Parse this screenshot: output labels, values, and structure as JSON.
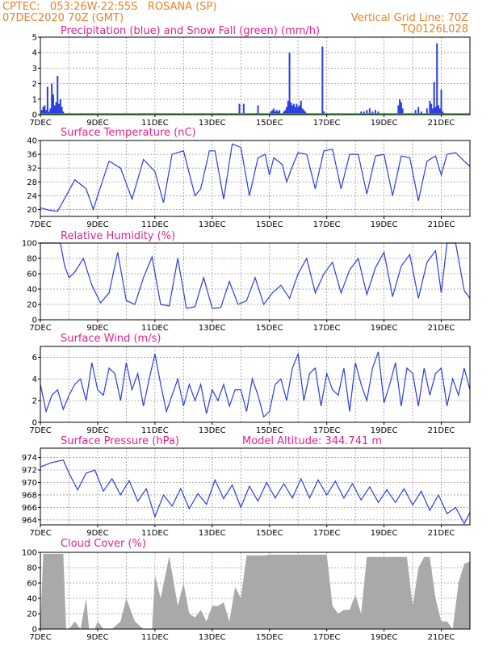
{
  "header": {
    "line1": "CPTEC:   053:26W-22:55S   ROSANA (SP)",
    "line2": "07DEC2020 70Z (GMT)",
    "grid_note": "Vertical Grid Line: 70Z",
    "code": "TQ0126L028"
  },
  "colors": {
    "header": "#e8822a",
    "title": "#e0228f",
    "series": "#2a3fe0",
    "snow": "#22aa22",
    "cloud": "#a9a9a9"
  },
  "x_axis": {
    "ticks": [
      {
        "day": 0,
        "label": "7DEC"
      },
      {
        "day": 2,
        "label": "9DEC"
      },
      {
        "day": 4,
        "label": "11DEC"
      },
      {
        "day": 6,
        "label": "13DEC"
      },
      {
        "day": 8,
        "label": "15DEC"
      },
      {
        "day": 10,
        "label": "17DEC"
      },
      {
        "day": 12,
        "label": "19DEC"
      },
      {
        "day": 14,
        "label": "21DEC"
      }
    ]
  },
  "chart_data": [
    {
      "type": "bar",
      "title": "Precipitation (blue) and Snow Fall (green) (mm/h)",
      "ylim": [
        0,
        5
      ],
      "yticks": [
        0,
        1,
        2,
        3,
        4,
        5
      ],
      "series": [
        {
          "name": "Precipitation",
          "color": "#2a3fe0",
          "x": [
            0.05,
            0.1,
            0.15,
            0.2,
            0.25,
            0.3,
            0.35,
            0.4,
            0.45,
            0.5,
            0.55,
            0.6,
            0.65,
            0.7,
            0.75,
            0.8,
            6.95,
            7.1,
            7.55,
            7.6,
            8.05,
            8.1,
            8.15,
            8.2,
            8.25,
            8.3,
            8.35,
            8.5,
            8.55,
            8.6,
            8.65,
            8.7,
            8.75,
            8.8,
            8.85,
            8.9,
            8.95,
            9.0,
            9.05,
            9.1,
            9.15,
            9.2,
            9.25,
            9.3,
            9.85,
            9.9,
            11.2,
            11.3,
            11.4,
            11.5,
            11.6,
            11.7,
            11.8,
            12.5,
            12.55,
            12.6,
            12.65,
            13.1,
            13.2,
            13.3,
            13.5,
            13.6,
            13.65,
            13.7,
            13.75,
            13.8,
            13.85,
            13.9,
            13.95,
            14.0,
            14.05,
            14.1
          ],
          "values": [
            0.3,
            0.5,
            0.6,
            0.3,
            1.8,
            0.2,
            0.4,
            2.0,
            1.3,
            0.6,
            0.8,
            2.5,
            0.7,
            1.0,
            0.5,
            0.2,
            0.7,
            0.7,
            0.1,
            0.6,
            0.2,
            0.3,
            0.4,
            0.2,
            0.3,
            0.2,
            0.3,
            0.2,
            0.3,
            0.5,
            0.9,
            4.0,
            0.8,
            0.6,
            0.7,
            0.5,
            0.7,
            0.5,
            0.6,
            0.9,
            0.4,
            0.3,
            0.2,
            0.1,
            4.4,
            0.2,
            0.2,
            0.2,
            0.3,
            0.4,
            0.2,
            0.3,
            0.2,
            0.6,
            1.0,
            0.8,
            0.4,
            0.3,
            0.5,
            0.2,
            0.4,
            0.9,
            0.7,
            0.4,
            2.1,
            0.5,
            4.6,
            0.6,
            0.4,
            1.6,
            0.2,
            0.1
          ]
        },
        {
          "name": "Snow Fall",
          "color": "#22aa22",
          "x": [
            0,
            15
          ],
          "values": [
            0,
            0
          ]
        }
      ]
    },
    {
      "type": "line",
      "title": "Surface Temperature (nC)",
      "ylim": [
        18,
        40
      ],
      "yticks": [
        20,
        24,
        28,
        32,
        36,
        40
      ],
      "x": [
        0,
        0.3,
        0.6,
        0.9,
        1.2,
        1.6,
        1.85,
        2.0,
        2.4,
        2.8,
        3.2,
        3.6,
        4.0,
        4.3,
        4.6,
        5.0,
        5.4,
        5.6,
        5.9,
        6.1,
        6.4,
        6.7,
        7.0,
        7.3,
        7.6,
        7.85,
        8.0,
        8.15,
        8.3,
        8.45,
        8.6,
        8.8,
        9.0,
        9.3,
        9.6,
        9.9,
        10.2,
        10.5,
        10.8,
        11.1,
        11.4,
        11.7,
        12.0,
        12.3,
        12.6,
        12.9,
        13.2,
        13.5,
        13.8,
        14.0,
        14.2,
        14.5,
        14.8,
        15.0
      ],
      "values": [
        20.5,
        19.8,
        19.5,
        24,
        28.6,
        26,
        20,
        24,
        34,
        32,
        23,
        34.5,
        31,
        22,
        36,
        37,
        24,
        26,
        37,
        37,
        23,
        39,
        38,
        24,
        35,
        36,
        30,
        35,
        34,
        33,
        28,
        32.5,
        36.5,
        36,
        26,
        37,
        37.5,
        26,
        36,
        36,
        24.5,
        35.5,
        36,
        24,
        35.5,
        35,
        22.5,
        34,
        35.5,
        30,
        36,
        36.5,
        34,
        32.5
      ]
    },
    {
      "type": "line",
      "title": "Relative Humidity (%)",
      "ylim": [
        0,
        100
      ],
      "yticks": [
        0,
        20,
        40,
        60,
        80,
        100
      ],
      "x": [
        0,
        0.4,
        0.7,
        0.85,
        1.0,
        1.2,
        1.5,
        1.8,
        2.1,
        2.4,
        2.7,
        3.0,
        3.3,
        3.6,
        3.9,
        4.2,
        4.5,
        4.8,
        5.1,
        5.4,
        5.7,
        6.0,
        6.3,
        6.6,
        6.9,
        7.2,
        7.5,
        7.8,
        8.1,
        8.4,
        8.7,
        9.0,
        9.3,
        9.6,
        9.9,
        10.2,
        10.5,
        10.8,
        11.1,
        11.4,
        11.7,
        12.0,
        12.3,
        12.6,
        12.9,
        13.2,
        13.5,
        13.8,
        14.0,
        14.2,
        14.5,
        14.8,
        15.0
      ],
      "values": [
        100,
        100,
        100,
        70,
        55,
        62,
        80,
        45,
        22,
        35,
        88,
        25,
        20,
        55,
        82,
        20,
        18,
        80,
        15,
        17,
        55,
        15,
        16,
        50,
        20,
        25,
        55,
        20,
        35,
        45,
        28,
        60,
        80,
        35,
        60,
        75,
        35,
        65,
        80,
        33,
        68,
        88,
        30,
        70,
        85,
        28,
        75,
        90,
        35,
        100,
        100,
        38,
        28
      ]
    },
    {
      "type": "line",
      "title": "Surface Wind (m/s)",
      "ylim": [
        0,
        7
      ],
      "yticks": [
        0,
        2,
        4,
        6
      ],
      "x": [
        0,
        0.2,
        0.4,
        0.6,
        0.8,
        1.0,
        1.2,
        1.4,
        1.6,
        1.8,
        2.0,
        2.2,
        2.4,
        2.6,
        2.8,
        3.0,
        3.2,
        3.4,
        3.6,
        3.8,
        4.0,
        4.2,
        4.4,
        4.6,
        4.8,
        5.0,
        5.2,
        5.4,
        5.6,
        5.8,
        6.0,
        6.2,
        6.4,
        6.6,
        6.8,
        7.0,
        7.2,
        7.4,
        7.6,
        7.8,
        8.0,
        8.2,
        8.4,
        8.6,
        8.8,
        9.0,
        9.2,
        9.4,
        9.6,
        9.8,
        10.0,
        10.2,
        10.4,
        10.6,
        10.8,
        11.0,
        11.2,
        11.4,
        11.6,
        11.8,
        12.0,
        12.2,
        12.4,
        12.6,
        12.8,
        13.0,
        13.2,
        13.4,
        13.6,
        13.8,
        14.0,
        14.2,
        14.4,
        14.6,
        14.8,
        15.0
      ],
      "values": [
        3.5,
        1.0,
        2.5,
        3.0,
        1.2,
        2.5,
        3.5,
        4.0,
        2.0,
        5.5,
        3.0,
        2.5,
        5.0,
        4.5,
        2.0,
        5.5,
        3.0,
        4.5,
        1.5,
        4.0,
        6.3,
        3.5,
        1.0,
        2.5,
        4.0,
        1.5,
        3.5,
        2.0,
        3.5,
        0.8,
        3.0,
        2.0,
        3.5,
        1.5,
        3.0,
        3.0,
        1.0,
        4.0,
        2.5,
        0.5,
        1.0,
        3.5,
        4.0,
        2.0,
        5.0,
        6.3,
        2.0,
        4.5,
        5.0,
        1.5,
        4.5,
        3.0,
        2.5,
        5.0,
        1.0,
        5.5,
        3.5,
        2.0,
        5.0,
        6.5,
        1.8,
        3.5,
        5.5,
        1.5,
        5.0,
        4.5,
        1.5,
        5.0,
        2.5,
        4.5,
        5.0,
        1.5,
        4.0,
        2.5,
        5.0,
        3.0
      ]
    },
    {
      "type": "line",
      "title": "Surface Pressure (hPa)",
      "annotation": "Model Altitude: 344.741 m",
      "ylim": [
        963.2,
        975.5
      ],
      "yticks": [
        964,
        966,
        968,
        970,
        972,
        974
      ],
      "x": [
        0,
        0.4,
        0.8,
        1.0,
        1.3,
        1.6,
        1.9,
        2.2,
        2.5,
        2.8,
        3.1,
        3.4,
        3.7,
        4.0,
        4.3,
        4.6,
        4.9,
        5.2,
        5.5,
        5.8,
        6.1,
        6.4,
        6.7,
        7.0,
        7.3,
        7.6,
        7.9,
        8.2,
        8.5,
        8.8,
        9.1,
        9.4,
        9.7,
        10.0,
        10.3,
        10.6,
        10.9,
        11.2,
        11.5,
        11.8,
        12.1,
        12.4,
        12.7,
        13.0,
        13.3,
        13.6,
        13.9,
        14.2,
        14.5,
        14.8,
        15.0
      ],
      "values": [
        972.5,
        973.2,
        973.6,
        971.5,
        968.8,
        971.5,
        972.0,
        968.6,
        970.6,
        968.0,
        970.3,
        967.0,
        969.0,
        964.5,
        968.0,
        966.2,
        969.0,
        965.8,
        968.2,
        966.5,
        970.4,
        967.4,
        969.6,
        966.0,
        969.4,
        967.0,
        970.0,
        967.5,
        969.8,
        967.5,
        970.6,
        967.5,
        970.4,
        968.0,
        970.2,
        967.5,
        969.8,
        967.2,
        969.3,
        966.8,
        968.8,
        966.8,
        969.0,
        966.4,
        968.6,
        965.5,
        968.0,
        965.0,
        966.0,
        963.4,
        965.2
      ]
    },
    {
      "type": "area",
      "title": "Cloud Cover (%)",
      "ylim": [
        0,
        100
      ],
      "yticks": [
        0,
        20,
        40,
        60,
        80,
        100
      ],
      "x": [
        0,
        0.1,
        0.8,
        0.9,
        1.0,
        1.2,
        1.4,
        1.6,
        1.7,
        1.8,
        1.9,
        2.0,
        2.2,
        2.5,
        2.8,
        3.0,
        3.3,
        3.6,
        3.9,
        4.0,
        4.2,
        4.5,
        4.8,
        5.0,
        5.2,
        5.4,
        5.6,
        5.8,
        6.0,
        6.2,
        6.4,
        6.6,
        6.8,
        7.0,
        7.2,
        7.4,
        7.6,
        7.8,
        8.0,
        8.5,
        9.0,
        9.5,
        9.8,
        10.0,
        10.2,
        10.4,
        10.6,
        10.8,
        11.0,
        11.2,
        11.4,
        11.8,
        12.0,
        12.2,
        12.4,
        12.6,
        12.8,
        13.0,
        13.2,
        13.4,
        13.6,
        13.8,
        14.0,
        14.2,
        14.4,
        14.6,
        14.8,
        15.0
      ],
      "values": [
        0,
        98,
        98,
        0,
        0,
        10,
        0,
        40,
        0,
        0,
        0,
        10,
        0,
        0,
        10,
        40,
        10,
        0,
        0,
        70,
        40,
        95,
        30,
        60,
        20,
        15,
        25,
        10,
        30,
        30,
        35,
        10,
        55,
        40,
        96,
        96,
        96,
        96,
        97,
        97,
        97,
        97,
        97,
        97,
        30,
        20,
        25,
        25,
        45,
        20,
        94,
        94,
        94,
        94,
        94,
        94,
        94,
        30,
        80,
        94,
        94,
        40,
        10,
        10,
        0,
        60,
        85,
        88
      ]
    }
  ]
}
